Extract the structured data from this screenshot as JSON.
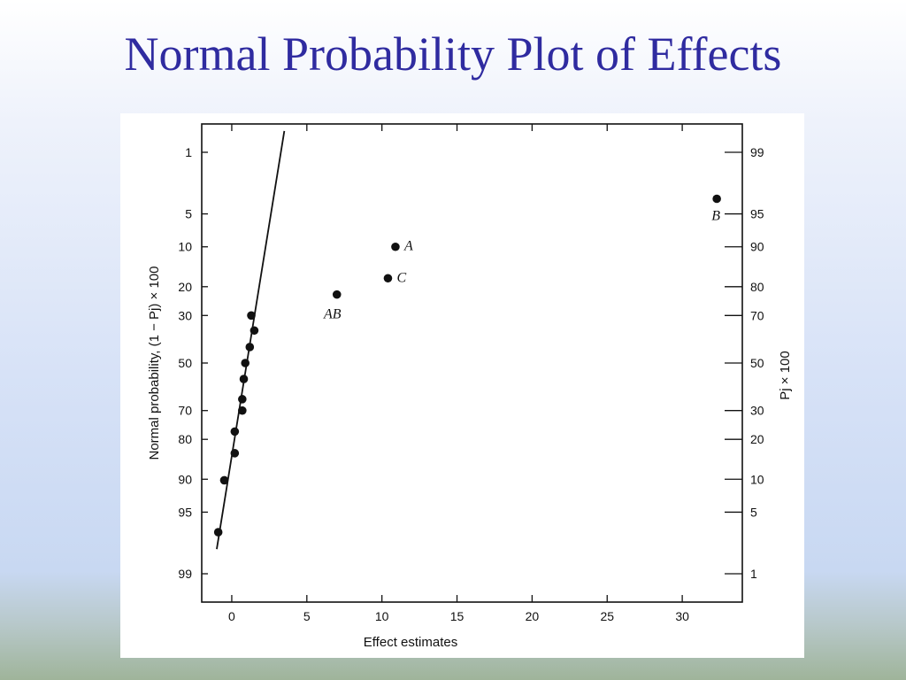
{
  "slide": {
    "title": "Normal Probability Plot of Effects"
  },
  "colors": {
    "title": "#2f2ba0",
    "ink": "#111111",
    "panel": "#ffffff"
  },
  "chart_data": {
    "type": "scatter",
    "title": "",
    "xlabel": "Effect estimates",
    "ylabel_left": "Normal probability, (1 − Pj) × 100",
    "ylabel_right": "Pj × 100",
    "xlim": [
      -2,
      34
    ],
    "x_ticks": [
      0,
      5,
      10,
      15,
      20,
      25,
      30
    ],
    "y_scale": "normal-probability",
    "left_ticks": [
      1,
      5,
      10,
      20,
      30,
      50,
      70,
      80,
      90,
      95,
      99
    ],
    "right_ticks": [
      99,
      95,
      90,
      80,
      70,
      50,
      30,
      20,
      10,
      5,
      1
    ],
    "grid": false,
    "points": [
      {
        "x": -0.9,
        "p": 96.9,
        "label": ""
      },
      {
        "x": -0.5,
        "p": 90.2,
        "label": ""
      },
      {
        "x": 0.2,
        "p": 84.0,
        "label": ""
      },
      {
        "x": 0.2,
        "p": 77.5,
        "label": ""
      },
      {
        "x": 0.7,
        "p": 70.0,
        "label": ""
      },
      {
        "x": 0.7,
        "p": 65.5,
        "label": ""
      },
      {
        "x": 0.8,
        "p": 57.0,
        "label": ""
      },
      {
        "x": 0.9,
        "p": 50.0,
        "label": ""
      },
      {
        "x": 1.2,
        "p": 43.0,
        "label": ""
      },
      {
        "x": 1.5,
        "p": 36.0,
        "label": ""
      },
      {
        "x": 1.3,
        "p": 30.0,
        "label": ""
      },
      {
        "x": 7.0,
        "p": 22.5,
        "label": "AB"
      },
      {
        "x": 10.4,
        "p": 17.5,
        "label": "C"
      },
      {
        "x": 10.9,
        "p": 10.0,
        "label": "A"
      },
      {
        "x": 32.3,
        "p": 3.5,
        "label": "B"
      }
    ],
    "fit_line": {
      "from": {
        "x": -1.0,
        "p": 98.0
      },
      "to": {
        "x": 3.5,
        "p": 0.52
      }
    }
  }
}
